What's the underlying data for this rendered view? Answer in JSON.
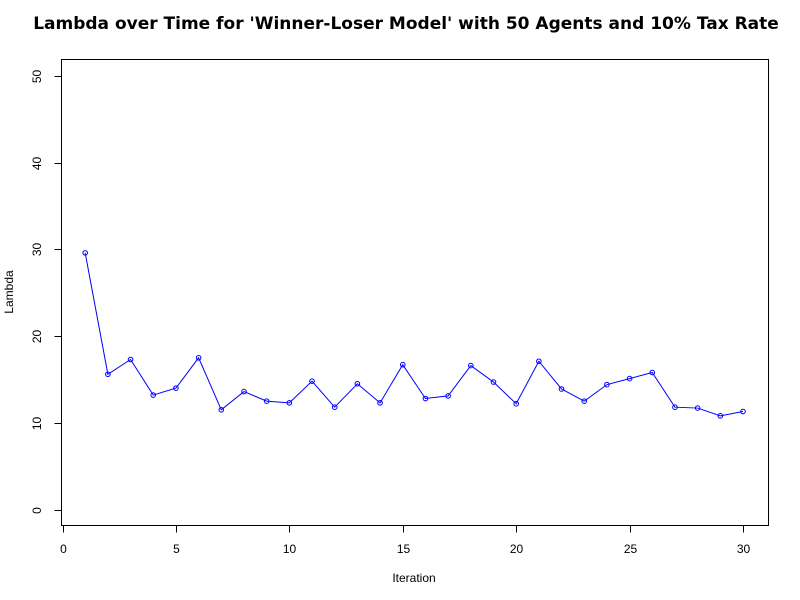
{
  "chart_data": {
    "type": "line",
    "title": "Lambda over Time for 'Winner-Loser Model' with 50 Agents and 10% Tax Rate",
    "xlabel": "Iteration",
    "ylabel": "Lambda",
    "xlim": [
      0,
      31
    ],
    "ylim": [
      -2,
      52
    ],
    "x_ticks": [
      0,
      5,
      10,
      15,
      20,
      25,
      30
    ],
    "y_ticks": [
      0,
      10,
      20,
      30,
      40,
      50
    ],
    "grid": false,
    "legend": "none",
    "marker": "open-circle",
    "color": "#0000ff",
    "x": [
      1,
      2,
      3,
      4,
      5,
      6,
      7,
      8,
      9,
      10,
      11,
      12,
      13,
      14,
      15,
      16,
      17,
      18,
      19,
      20,
      21,
      22,
      23,
      24,
      25,
      26,
      27,
      28,
      29,
      30
    ],
    "y": [
      29.6,
      15.6,
      17.3,
      13.2,
      14.0,
      17.5,
      11.5,
      13.6,
      12.5,
      12.3,
      14.8,
      11.8,
      14.5,
      12.3,
      16.7,
      12.8,
      13.1,
      16.6,
      14.7,
      12.2,
      17.1,
      13.9,
      12.5,
      14.4,
      15.1,
      15.8,
      11.8,
      11.7,
      10.8,
      11.3
    ]
  }
}
